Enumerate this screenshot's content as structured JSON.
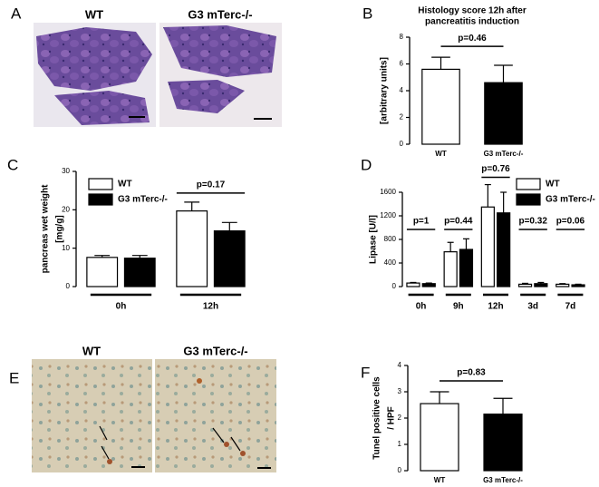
{
  "images": [
    {
      "panel": "A",
      "labels": [
        "WT",
        "G3 mTerc-/-"
      ]
    },
    {
      "panel": "E",
      "labels": [
        "WT",
        "G3 mTerc-/-"
      ]
    }
  ],
  "chart_data": [
    {
      "panel": "B",
      "type": "bar",
      "title": [
        "Histology score 12h after",
        "pancreatitis induction"
      ],
      "ylabel": [
        "[arbitrary units]"
      ],
      "categories": [
        "WT",
        "G3 mTerc-/-"
      ],
      "series": [
        {
          "colors": [
            "#ffffff",
            "#000000"
          ],
          "values": [
            5.6,
            4.6
          ],
          "errors": [
            0.9,
            1.3
          ]
        }
      ],
      "ylim": [
        0,
        8
      ],
      "yticks": [
        0,
        2,
        4,
        6,
        8
      ],
      "annotations": [
        "p=0.46"
      ]
    },
    {
      "panel": "C",
      "type": "bar",
      "ylabel": [
        "pancreas wet weight",
        "[mg/g]"
      ],
      "categories": [
        "0h",
        "12h"
      ],
      "series": [
        {
          "name": "WT",
          "color": "#ffffff",
          "values": [
            7.6,
            19.7
          ],
          "errors": [
            0.5,
            2.3
          ]
        },
        {
          "name": "G3 mTerc-/-",
          "color": "#000000",
          "values": [
            7.4,
            14.5
          ],
          "errors": [
            0.7,
            2.2
          ]
        }
      ],
      "ylim": [
        0,
        30
      ],
      "yticks": [
        0,
        10,
        20,
        30
      ],
      "legend": "upper left",
      "annotations": [
        "p=0.17"
      ]
    },
    {
      "panel": "D",
      "type": "bar",
      "ylabel": [
        "Lipase [U/l]"
      ],
      "categories": [
        "0h",
        "9h",
        "12h",
        "3d",
        "7d"
      ],
      "series": [
        {
          "name": "WT",
          "color": "#ffffff",
          "values": [
            60,
            590,
            1350,
            40,
            40
          ],
          "errors": [
            10,
            160,
            380,
            15,
            10
          ]
        },
        {
          "name": "G3 mTerc-/-",
          "color": "#000000",
          "values": [
            50,
            630,
            1250,
            50,
            30
          ],
          "errors": [
            10,
            180,
            350,
            20,
            10
          ]
        }
      ],
      "ylim": [
        0,
        1600
      ],
      "yticks": [
        0,
        400,
        800,
        1200,
        1600
      ],
      "legend": "upper right",
      "annotations": [
        "p=1",
        "p=0.44",
        "p=0.76",
        "p=0.32",
        "p=0.06"
      ]
    },
    {
      "panel": "F",
      "type": "bar",
      "ylabel": [
        "Tunel positive cells",
        "/ HPF"
      ],
      "categories": [
        "WT",
        "G3 mTerc-/-"
      ],
      "series": [
        {
          "colors": [
            "#ffffff",
            "#000000"
          ],
          "values": [
            2.55,
            2.15
          ],
          "errors": [
            0.45,
            0.6
          ]
        }
      ],
      "ylim": [
        0,
        4
      ],
      "yticks": [
        0,
        1,
        2,
        3,
        4
      ],
      "annotations": [
        "p=0.83"
      ]
    }
  ]
}
